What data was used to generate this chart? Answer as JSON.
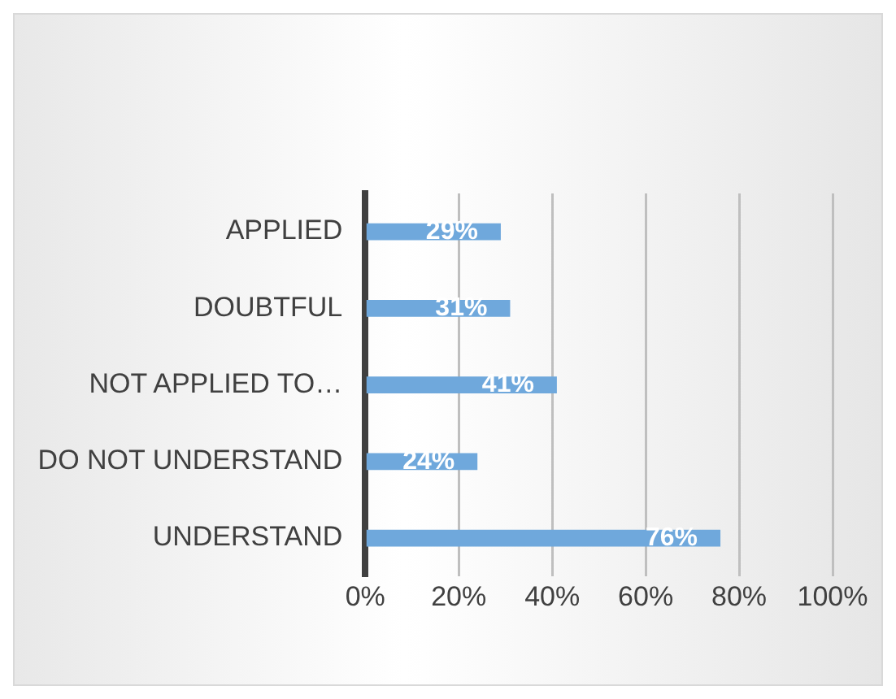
{
  "chart_data": {
    "type": "bar",
    "orientation": "horizontal",
    "categories": [
      "APPLIED",
      "DOUBTFUL",
      "NOT APPLIED TO…",
      "DO NOT UNDERSTAND",
      "UNDERSTAND"
    ],
    "values": [
      29,
      31,
      41,
      24,
      76
    ],
    "value_labels": [
      "29%",
      "31%",
      "41%",
      "24%",
      "76%"
    ],
    "color": "#6fa8dc",
    "xlim": [
      0,
      100
    ],
    "xticks": [
      {
        "value": 0,
        "label": "0%"
      },
      {
        "value": 20,
        "label": "20%"
      },
      {
        "value": 40,
        "label": "40%"
      },
      {
        "value": 60,
        "label": "60%"
      },
      {
        "value": 80,
        "label": "80%"
      },
      {
        "value": 100,
        "label": "100%"
      }
    ],
    "grid": "x",
    "legend": false
  }
}
